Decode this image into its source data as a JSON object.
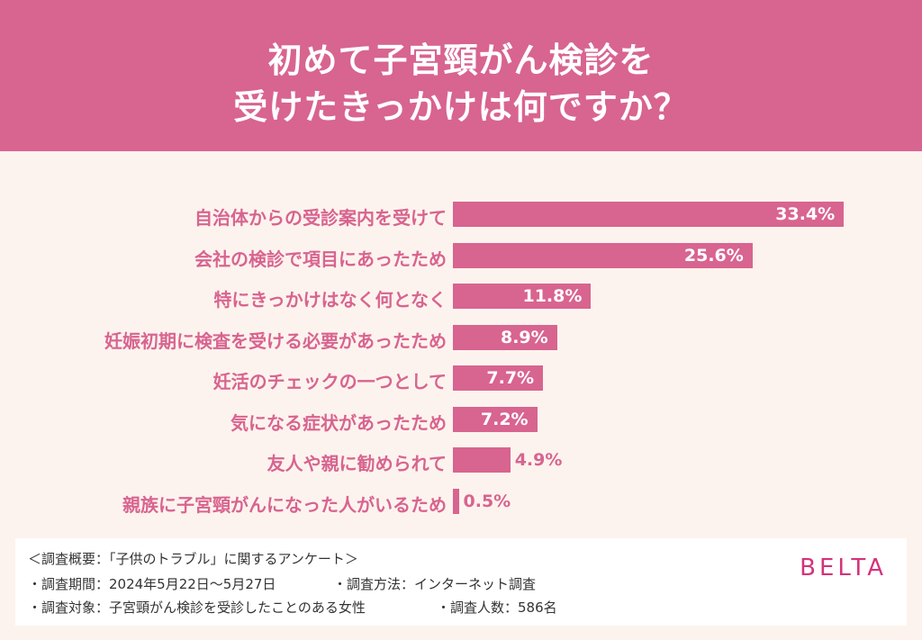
{
  "header": {
    "title_line1": "初めて子宮頸がん検診を",
    "title_line2": "受けたきっかけは何ですか？"
  },
  "chart_data": {
    "type": "bar",
    "orientation": "horizontal",
    "title": "初めて子宮頸がん検診を受けたきっかけは何ですか？",
    "categories": [
      "自治体からの受診案内を受けて",
      "会社の検診で項目にあったため",
      "特にきっかけはなく何となく",
      "妊娠初期に検査を受ける必要があったため",
      "妊活のチェックの一つとして",
      "気になる症状があったため",
      "友人や親に勧められて",
      "親族に子宮頸がんになった人がいるため"
    ],
    "values": [
      33.4,
      25.6,
      11.8,
      8.9,
      7.7,
      7.2,
      4.9,
      0.5
    ],
    "value_labels": [
      "33.4%",
      "25.6%",
      "11.8%",
      "8.9%",
      "7.7%",
      "7.2%",
      "4.9%",
      "0.5%"
    ],
    "unit": "%",
    "color": "#d86490"
  },
  "footer": {
    "line1": "＜調査概要：「子供のトラブル」に関するアンケート＞",
    "period": "・調査期間：2024年5月22日〜5月27日",
    "method": "・調査方法：インターネット調査",
    "target": "・調査対象：子宮頸がん検診を受診したことのある女性",
    "count": "・調査人数：586名",
    "brand": "BELTA"
  }
}
